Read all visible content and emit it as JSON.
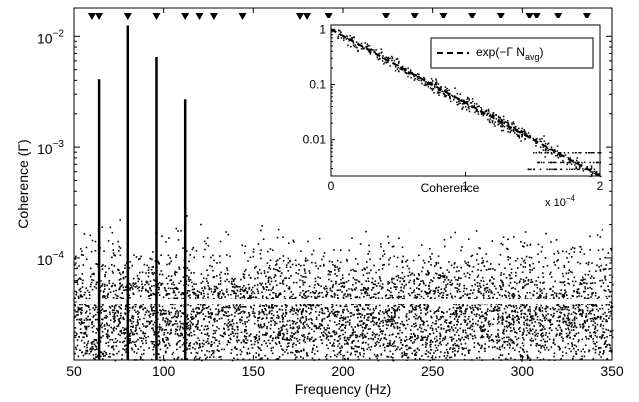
{
  "chart_data": [
    {
      "type": "scatter",
      "xlabel": "Frequency (Hz)",
      "ylabel": "Coherence (Γ)",
      "xlim": [
        50,
        350
      ],
      "ylim": [
        1.2e-05,
        0.018
      ],
      "yscale": "log",
      "x_ticks": [
        50,
        100,
        150,
        200,
        250,
        300,
        350
      ],
      "x_tick_labels": [
        "50",
        "100",
        "150",
        "200",
        "250",
        "300",
        "350"
      ],
      "y_ticks": [
        0.0001,
        0.001,
        0.01
      ],
      "y_tick_labels": [
        {
          "base": "10",
          "exp": "−4"
        },
        {
          "base": "10",
          "exp": "−3"
        },
        {
          "base": "10",
          "exp": "−2"
        }
      ],
      "grid": false,
      "noise_band": {
        "y_min": 1.2e-05,
        "y_max": 0.00025,
        "y_typical": 3e-05
      },
      "threshold_line": {
        "y": 3.1e-05,
        "color": "#ffffff"
      },
      "spikes": [
        {
          "x": 64,
          "y": 0.0041
        },
        {
          "x": 80,
          "y": 0.0125
        },
        {
          "x": 96,
          "y": 0.0065
        },
        {
          "x": 112,
          "y": 0.0027
        }
      ],
      "markers": {
        "shape": "downward-triangle",
        "x": [
          60,
          64,
          80,
          96,
          112,
          120,
          128,
          144,
          176,
          180,
          192,
          224,
          240,
          256,
          272,
          288,
          304,
          308,
          320,
          336
        ]
      }
    },
    {
      "type": "scatter",
      "inset": true,
      "xlabel": "Coherence",
      "x_exponent_label": {
        "prefix": "x 10",
        "exp": "−4"
      },
      "xlim": [
        0,
        2
      ],
      "ylim": [
        0.0022,
        1.2
      ],
      "yscale": "log",
      "x_ticks": [
        0,
        1,
        2
      ],
      "x_tick_labels": [
        "0",
        "1",
        "2"
      ],
      "y_ticks": [
        1,
        0.1,
        0.01
      ],
      "y_tick_labels": [
        "1",
        "0.1",
        "0.01"
      ],
      "legend": {
        "position": "top-right",
        "entries": [
          "exp(−Γ N"
        ],
        "subscript": "avg",
        "close": ")"
      },
      "fit_line": {
        "style": "dashed",
        "x": [
          0,
          2
        ],
        "y": [
          1,
          0.0022
        ]
      },
      "data_points_approx": {
        "x_range": [
          0,
          2
        ],
        "decay": "exponential",
        "tail_floor": [
          0.003,
          0.006
        ]
      }
    }
  ]
}
